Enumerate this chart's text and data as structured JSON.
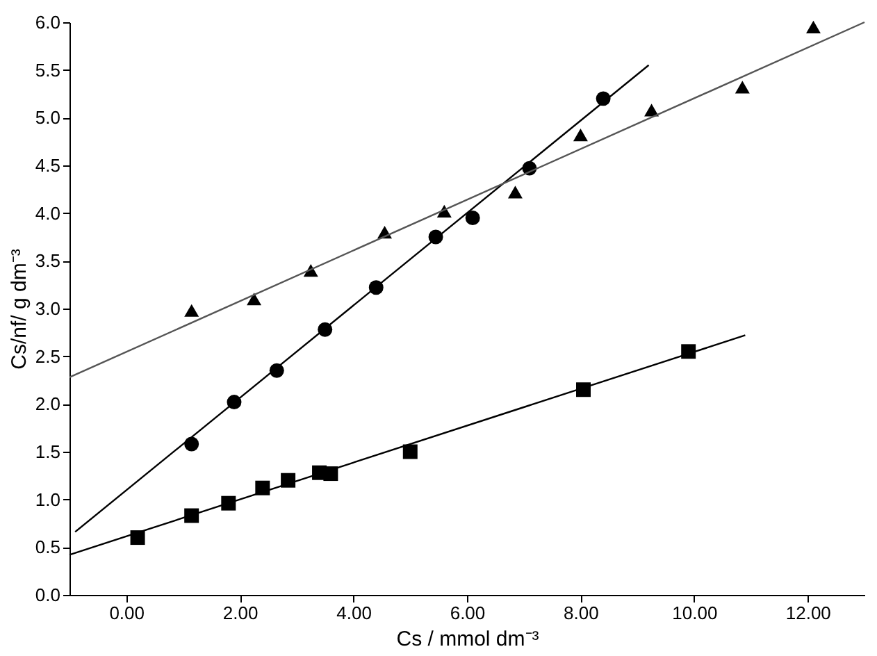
{
  "chart_data": {
    "type": "scatter",
    "xlabel": "Cs / mmol dm⁻³",
    "ylabel": "Cs/nf/ g dm⁻³",
    "xlim": [
      -1,
      13
    ],
    "ylim": [
      0,
      6
    ],
    "xticks": [
      {
        "value": 0,
        "label": "0.00"
      },
      {
        "value": 2,
        "label": "2.00"
      },
      {
        "value": 4,
        "label": "4.00"
      },
      {
        "value": 6,
        "label": "6.00"
      },
      {
        "value": 8,
        "label": "8.00"
      },
      {
        "value": 10,
        "label": "10.00"
      },
      {
        "value": 12,
        "label": "12.00"
      }
    ],
    "yticks": [
      {
        "value": 0,
        "label": "0.0"
      },
      0.5,
      {
        "value": 1,
        "label": "1.0"
      },
      1.5,
      {
        "value": 2,
        "label": "2.0"
      },
      2.5,
      {
        "value": 3,
        "label": "3.0"
      },
      3.5,
      {
        "value": 4,
        "label": "4.0"
      },
      4.5,
      {
        "value": 5,
        "label": "5.0"
      },
      5.5,
      {
        "value": 6,
        "label": "6.0"
      }
    ],
    "grid": false,
    "series": [
      {
        "marker": "square",
        "color": "#000000",
        "x": [
          0.2,
          1.15,
          1.8,
          2.4,
          2.85,
          3.4,
          3.6,
          5.0,
          8.05,
          9.9
        ],
        "values": [
          0.6,
          0.83,
          0.96,
          1.12,
          1.2,
          1.28,
          1.27,
          1.5,
          2.15,
          2.55
        ]
      },
      {
        "marker": "circle",
        "color": "#000000",
        "x": [
          1.15,
          1.9,
          2.65,
          3.5,
          4.4,
          5.45,
          6.1,
          7.1,
          8.4
        ],
        "values": [
          1.58,
          2.02,
          2.35,
          2.78,
          3.22,
          3.75,
          3.95,
          4.47,
          5.2
        ]
      },
      {
        "marker": "triangle",
        "color": "#000000",
        "x": [
          1.15,
          2.25,
          3.25,
          4.55,
          5.6,
          6.85,
          8.0,
          9.25,
          10.85,
          12.1
        ],
        "values": [
          2.98,
          3.1,
          3.4,
          3.8,
          4.02,
          4.22,
          4.82,
          5.08,
          5.32,
          5.95
        ]
      },
      {
        "type": "line",
        "marker": "none",
        "line_style": "solid",
        "color": "#000000",
        "x": [
          -1,
          10.9
        ],
        "values": [
          0.42,
          2.72
        ]
      },
      {
        "type": "line",
        "marker": "none",
        "line_style": "solid",
        "color": "#000000",
        "x": [
          -0.9,
          9.2
        ],
        "values": [
          0.66,
          5.55
        ]
      },
      {
        "type": "line",
        "marker": "none",
        "line_style": "solid",
        "color": "#555555",
        "x": [
          -1,
          13
        ],
        "values": [
          2.28,
          6.0
        ]
      }
    ]
  }
}
